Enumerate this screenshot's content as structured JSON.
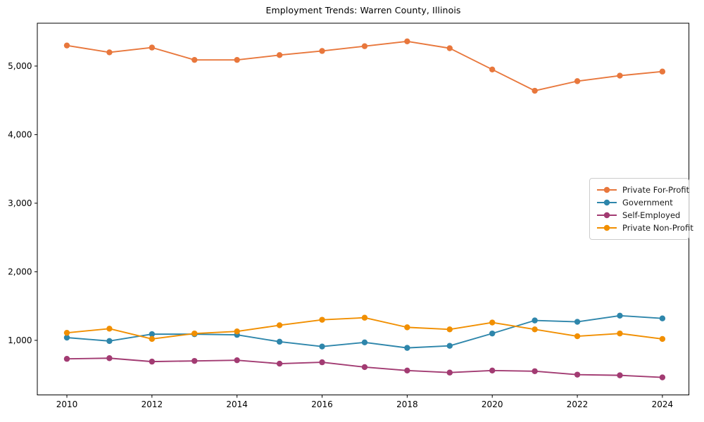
{
  "title": "Employment Trends: Warren County, Illinois",
  "chart_data": {
    "type": "line",
    "title": "Employment Trends: Warren County, Illinois",
    "xlabel": "",
    "ylabel": "",
    "grid": false,
    "legend_position": "center right",
    "x": [
      2010,
      2011,
      2012,
      2013,
      2014,
      2015,
      2016,
      2017,
      2018,
      2019,
      2020,
      2021,
      2022,
      2023,
      2024
    ],
    "series": [
      {
        "name": "Private For-Profit",
        "color": "#E8773C",
        "values": [
          5300,
          5200,
          5270,
          5090,
          5090,
          5160,
          5220,
          5290,
          5360,
          5260,
          4950,
          4640,
          4780,
          4860,
          4920
        ]
      },
      {
        "name": "Government",
        "color": "#2E86AB",
        "values": [
          1040,
          990,
          1090,
          1090,
          1080,
          980,
          910,
          970,
          890,
          920,
          1100,
          1290,
          1270,
          1360,
          1320
        ]
      },
      {
        "name": "Self-Employed",
        "color": "#A23B72",
        "values": [
          730,
          740,
          690,
          700,
          710,
          660,
          680,
          610,
          560,
          530,
          560,
          550,
          500,
          490,
          460
        ]
      },
      {
        "name": "Private Non-Profit",
        "color": "#F18F01",
        "values": [
          1110,
          1170,
          1020,
          1100,
          1130,
          1220,
          1300,
          1330,
          1190,
          1160,
          1260,
          1160,
          1060,
          1100,
          1020
        ]
      }
    ],
    "xticks": [
      2010,
      2012,
      2014,
      2016,
      2018,
      2020,
      2022,
      2024
    ],
    "yticks": [
      1000,
      2000,
      3000,
      4000,
      5000
    ],
    "ytick_labels": [
      "1,000",
      "2,000",
      "3,000",
      "4,000",
      "5,000"
    ],
    "xlim": [
      2009.305,
      2024.624
    ],
    "ylim": [
      204,
      5625
    ]
  }
}
